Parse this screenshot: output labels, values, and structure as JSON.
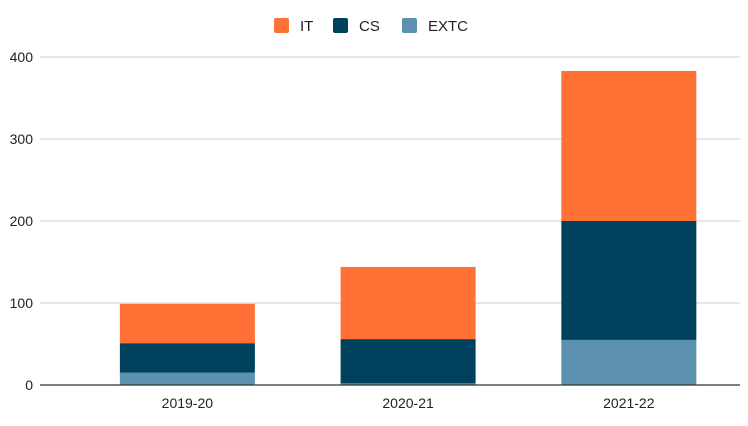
{
  "chart_data": {
    "type": "bar",
    "stacked": true,
    "categories": [
      "2019-20",
      "2020-21",
      "2021-22"
    ],
    "series": [
      {
        "name": "EXTC",
        "color": "#5b91ae",
        "values": [
          15,
          2,
          55
        ]
      },
      {
        "name": "CS",
        "color": "#00425e",
        "values": [
          36,
          54,
          145
        ]
      },
      {
        "name": "IT",
        "color": "#ff7135",
        "values": [
          48,
          88,
          183
        ]
      }
    ],
    "legend_order": [
      "IT",
      "CS",
      "EXTC"
    ],
    "legend_position": "top",
    "y_ticks": [
      "0",
      "100",
      "200",
      "300",
      "400"
    ],
    "ylim": [
      0,
      400
    ],
    "grid": true
  }
}
